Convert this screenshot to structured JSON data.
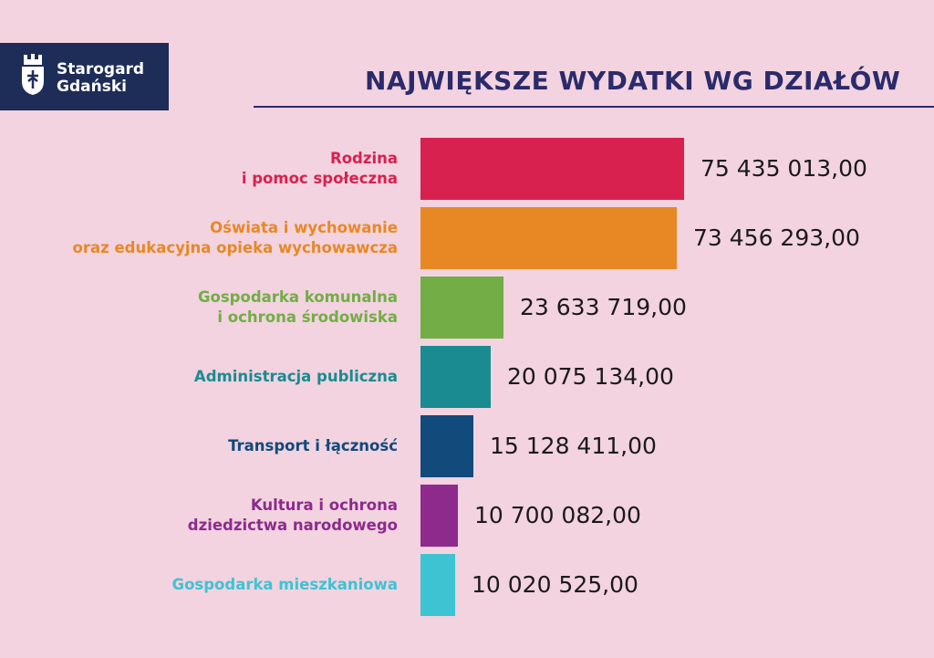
{
  "brand": {
    "name_line1": "Starogard",
    "name_line2": "Gdański",
    "box_color": "#1e2c58",
    "crest": "crest-icon"
  },
  "chart_data": {
    "type": "bar",
    "orientation": "horizontal",
    "title": "NAJWIĘKSZE WYDATKI WG DZIAŁÓW",
    "categories": [
      [
        "Rodzina",
        "i pomoc społeczna"
      ],
      [
        "Oświata i wychowanie",
        "oraz edukacyjna opieka wychowawcza"
      ],
      [
        "Gospodarka komunalna",
        "i ochrona środowiska"
      ],
      [
        "Administracja publiczna"
      ],
      [
        "Transport i łączność"
      ],
      [
        "Kultura i ochrona",
        "dziedzictwa narodowego"
      ],
      [
        "Gospodarka mieszkaniowa"
      ]
    ],
    "values": [
      75435013.0,
      73456293.0,
      23633719.0,
      20075134.0,
      15128411.0,
      10700082.0,
      10020525.0
    ],
    "value_labels": [
      "75 435 013,00",
      "73 456 293,00",
      "23 633 719,00",
      "20 075 134,00",
      "15 128 411,00",
      "10 700 082,00",
      "10 020 525,00"
    ],
    "colors": [
      "#d8214f",
      "#e88825",
      "#72ae45",
      "#1a8b90",
      "#114a7b",
      "#8e2a8c",
      "#3ec3d3"
    ],
    "xlim": [
      0,
      75435013
    ],
    "grid": false,
    "legend": "none"
  }
}
